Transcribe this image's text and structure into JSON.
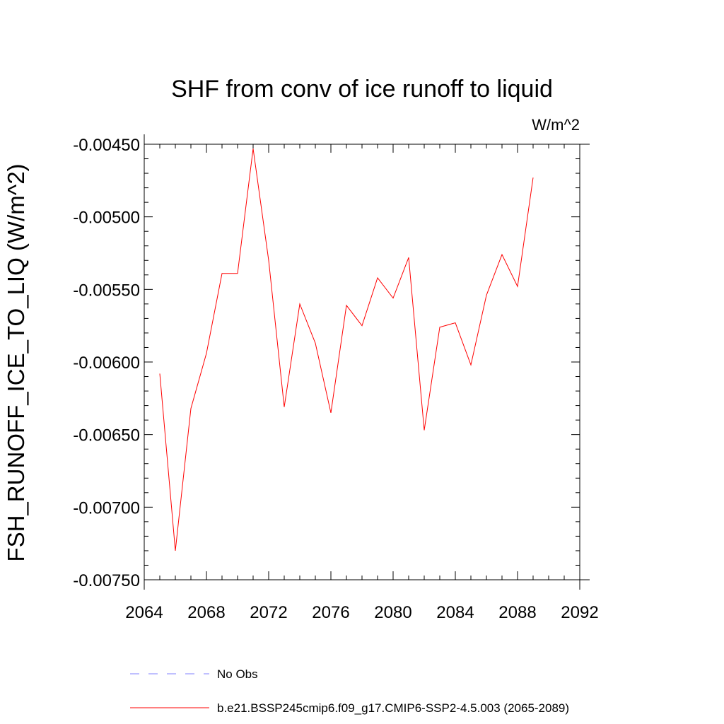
{
  "chart_data": {
    "type": "line",
    "title": "SHF from conv of ice runoff to liquid",
    "units": "W/m^2",
    "ylabel": "FSH_RUNOFF_ICE_TO_LIQ  (W/m^2)",
    "xlabel": "",
    "xlim": [
      2064,
      2092
    ],
    "ylim": [
      -0.0075,
      -0.0045
    ],
    "x_ticks": [
      2064,
      2068,
      2072,
      2076,
      2080,
      2084,
      2088,
      2092
    ],
    "x_tick_labels": [
      "2064",
      "2068",
      "2072",
      "2076",
      "2080",
      "2084",
      "2088",
      "2092"
    ],
    "y_ticks": [
      -0.0045,
      -0.005,
      -0.0055,
      -0.006,
      -0.0065,
      -0.007,
      -0.0075
    ],
    "y_tick_labels": [
      "-0.00450",
      "-0.00500",
      "-0.00550",
      "-0.00600",
      "-0.00650",
      "-0.00700",
      "-0.00750"
    ],
    "grid": false,
    "series": [
      {
        "name": "b.e21.BSSP245cmip6.f09_g17.CMIP6-SSP2-4.5.003 (2065-2089)",
        "color": "#ff0000",
        "style": "solid",
        "x": [
          2065,
          2066,
          2067,
          2068,
          2069,
          2070,
          2071,
          2072,
          2073,
          2074,
          2075,
          2076,
          2077,
          2078,
          2079,
          2080,
          2081,
          2082,
          2083,
          2084,
          2085,
          2086,
          2087,
          2088,
          2089
        ],
        "values": [
          -0.00608,
          -0.0073,
          -0.00632,
          -0.00594,
          -0.00539,
          -0.00539,
          -0.00453,
          -0.0053,
          -0.00631,
          -0.0056,
          -0.00587,
          -0.00635,
          -0.00561,
          -0.00575,
          -0.00542,
          -0.00556,
          -0.00528,
          -0.00647,
          -0.00576,
          -0.00573,
          -0.00602,
          -0.00554,
          -0.00526,
          -0.00548,
          -0.00473
        ]
      }
    ],
    "legend": {
      "placement": "bottom",
      "entries": [
        {
          "label": "No Obs",
          "color": "#8080ff",
          "style": "dashed"
        },
        {
          "label": "b.e21.BSSP245cmip6.f09_g17.CMIP6-SSP2-4.5.003 (2065-2089)",
          "color": "#ff0000",
          "style": "solid"
        }
      ]
    }
  }
}
